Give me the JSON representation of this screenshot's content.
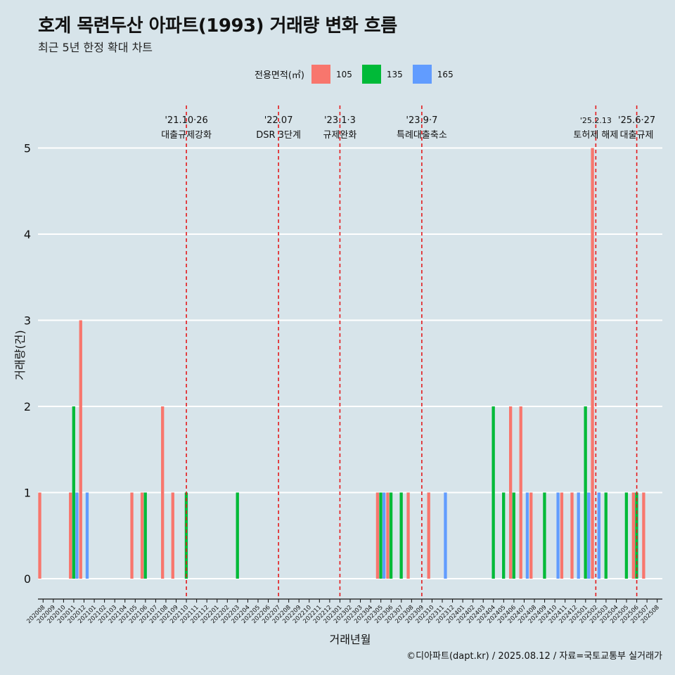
{
  "header": {
    "title": "호계 목련두산 아파트(1993) 거래량 변화 흐름",
    "subtitle": "최근 5년 한정 확대 차트"
  },
  "legend": {
    "title": "전용면적(㎡)",
    "items": [
      {
        "label": "105",
        "color": "#f8766d"
      },
      {
        "label": "135",
        "color": "#00ba38"
      },
      {
        "label": "165",
        "color": "#619cff"
      }
    ]
  },
  "caption": "©디아파트(dapt.kr) / 2025.08.12 / 자료=국토교통부 실거래가",
  "chart_data": {
    "type": "bar",
    "title": "호계 목련두산 아파트(1993) 거래량 변화 흐름",
    "subtitle": "최근 5년 한정 확대 차트",
    "xlabel": "거래년월",
    "ylabel": "거래량(건)",
    "ylim": [
      0,
      5
    ],
    "yticks": [
      0,
      1,
      2,
      3,
      4,
      5
    ],
    "grid": "horizontal",
    "legend_position": "top",
    "categories": [
      "202008",
      "202009",
      "202010",
      "202011",
      "202012",
      "202101",
      "202102",
      "202103",
      "202104",
      "202105",
      "202106",
      "202107",
      "202108",
      "202109",
      "202110",
      "202111",
      "202112",
      "202201",
      "202202",
      "202203",
      "202204",
      "202205",
      "202206",
      "202207",
      "202208",
      "202209",
      "202210",
      "202211",
      "202212",
      "202301",
      "202302",
      "202303",
      "202304",
      "202305",
      "202306",
      "202307",
      "202308",
      "202309",
      "202310",
      "202311",
      "202312",
      "202401",
      "202402",
      "202403",
      "202404",
      "202405",
      "202406",
      "202407",
      "202408",
      "202409",
      "202410",
      "202411",
      "202412",
      "202501",
      "202502",
      "202503",
      "202504",
      "202505",
      "202506",
      "202507",
      "202508"
    ],
    "series": [
      {
        "name": "105",
        "color": "#f8766d",
        "values": [
          1,
          0,
          0,
          1,
          3,
          0,
          0,
          0,
          0,
          1,
          1,
          0,
          2,
          1,
          0,
          0,
          0,
          0,
          0,
          0,
          0,
          0,
          0,
          0,
          0,
          0,
          0,
          0,
          0,
          0,
          0,
          0,
          0,
          1,
          1,
          0,
          1,
          0,
          1,
          0,
          0,
          0,
          0,
          0,
          0,
          0,
          2,
          2,
          1,
          0,
          0,
          1,
          1,
          0,
          5,
          0,
          0,
          0,
          1,
          1,
          0
        ]
      },
      {
        "name": "135",
        "color": "#00ba38",
        "values": [
          0,
          0,
          0,
          2,
          0,
          0,
          0,
          0,
          0,
          0,
          1,
          0,
          0,
          0,
          1,
          0,
          0,
          0,
          0,
          1,
          0,
          0,
          0,
          0,
          0,
          0,
          0,
          0,
          0,
          0,
          0,
          0,
          0,
          1,
          1,
          1,
          0,
          0,
          0,
          0,
          0,
          0,
          0,
          0,
          2,
          1,
          1,
          0,
          0,
          1,
          0,
          0,
          0,
          2,
          0,
          1,
          0,
          1,
          1,
          0,
          0
        ]
      },
      {
        "name": "165",
        "color": "#619cff",
        "values": [
          0,
          0,
          0,
          1,
          1,
          0,
          0,
          0,
          0,
          0,
          0,
          0,
          0,
          0,
          0,
          0,
          0,
          0,
          0,
          0,
          0,
          0,
          0,
          0,
          0,
          0,
          0,
          0,
          0,
          0,
          0,
          0,
          0,
          1,
          0,
          0,
          0,
          0,
          0,
          1,
          0,
          0,
          0,
          0,
          0,
          0,
          0,
          1,
          0,
          0,
          1,
          0,
          1,
          1,
          1,
          0,
          0,
          0,
          0,
          0,
          0
        ]
      }
    ],
    "annotations": [
      {
        "month": "202110",
        "date": "'21.10·26",
        "label": "대출규제강화"
      },
      {
        "month": "202207",
        "date": "'22.07",
        "label": "DSR 3단계"
      },
      {
        "month": "202301",
        "date": "'23.1·3",
        "label": "규제완화"
      },
      {
        "month": "202309",
        "date": "'23.9·7",
        "label": "특례대출축소"
      },
      {
        "month": "202502",
        "date": "'25.2.13",
        "label": "토허제 해제"
      },
      {
        "month": "202506",
        "date": "'25.6·27",
        "label": "대출규제"
      }
    ]
  }
}
